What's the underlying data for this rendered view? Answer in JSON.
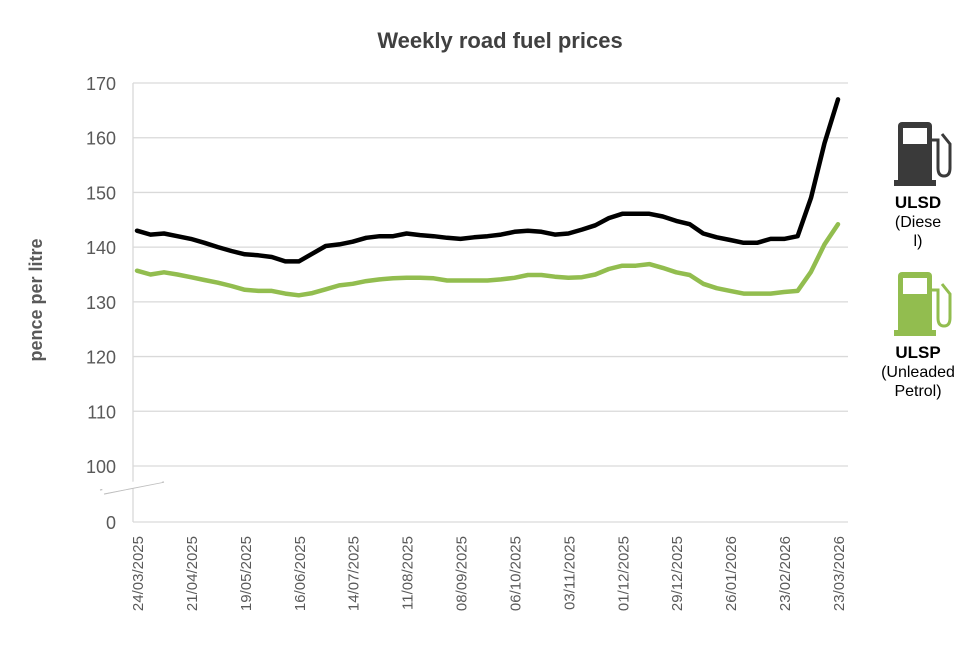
{
  "chart_data": {
    "type": "line",
    "title": "Weekly road fuel prices",
    "xlabel": "",
    "ylabel": "pence per litre",
    "ylim": [
      100,
      170
    ],
    "y_ticks": [
      0,
      100,
      110,
      120,
      130,
      140,
      150,
      160,
      170
    ],
    "y_axis_break": "between 0 and 100",
    "grid": true,
    "x_tick_labels": [
      "24/03/2025",
      "21/04/2025",
      "19/05/2025",
      "16/06/2025",
      "14/07/2025",
      "11/08/2025",
      "08/09/2025",
      "06/10/2025",
      "03/11/2025",
      "01/12/2025",
      "29/12/2025",
      "26/01/2026",
      "23/02/2026",
      "23/03/2026"
    ],
    "x_points": 53,
    "legend_placement": "right",
    "series": [
      {
        "name": "ULSD",
        "subtitle": "(Diesel)",
        "color": "#000000",
        "values": [
          143,
          142.3,
          142.5,
          142,
          141.5,
          140.8,
          140,
          139.3,
          138.7,
          138.5,
          138.2,
          137.4,
          137.4,
          138.8,
          140.2,
          140.5,
          141,
          141.7,
          142,
          142,
          142.5,
          142.2,
          142,
          141.7,
          141.5,
          141.8,
          142,
          142.3,
          142.8,
          143,
          142.8,
          142.3,
          142.5,
          143.2,
          144,
          145.3,
          146.1,
          146.1,
          146.1,
          145.6,
          144.8,
          144.2,
          142.5,
          141.8,
          141.3,
          140.8,
          140.8,
          141.5,
          141.5,
          142,
          149,
          159,
          167
        ]
      },
      {
        "name": "ULSP",
        "subtitle": "(Unleaded Petrol)",
        "color": "#92bd4f",
        "values": [
          135.7,
          135,
          135.4,
          135,
          134.5,
          134,
          133.5,
          132.9,
          132.2,
          132,
          132,
          131.5,
          131.2,
          131.6,
          132.3,
          133,
          133.3,
          133.8,
          134.1,
          134.3,
          134.4,
          134.4,
          134.3,
          133.9,
          133.9,
          133.9,
          133.9,
          134.1,
          134.4,
          134.9,
          134.9,
          134.6,
          134.4,
          134.5,
          135,
          136,
          136.6,
          136.6,
          136.9,
          136.2,
          135.4,
          134.9,
          133.3,
          132.5,
          132,
          131.5,
          131.5,
          131.5,
          131.8,
          132,
          135.5,
          140.5,
          144.2
        ]
      }
    ]
  }
}
